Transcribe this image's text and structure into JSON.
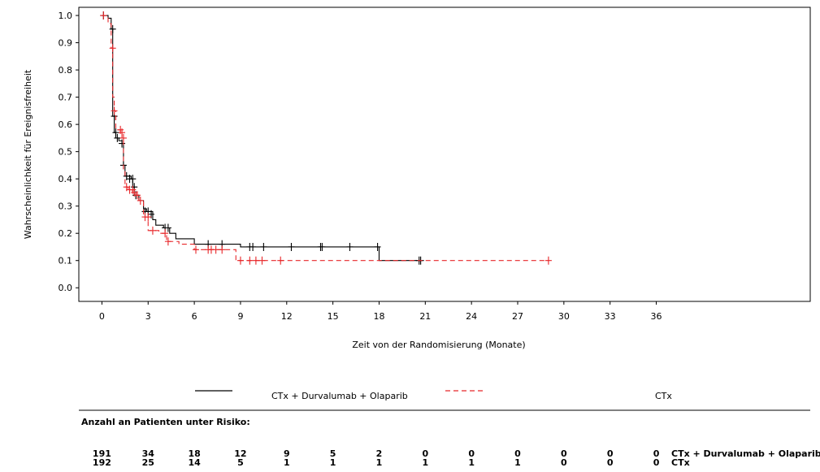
{
  "chart_data": {
    "type": "line",
    "title": "",
    "xlabel": "Zeit von der Randomisierung (Monate)",
    "ylabel": "Wahrscheinlichkeit für Ereignisfreiheit",
    "xlim": [
      -1.5,
      46
    ],
    "ylim": [
      -0.05,
      1.03
    ],
    "x_ticks": [
      0,
      3,
      6,
      9,
      12,
      15,
      18,
      21,
      24,
      27,
      30,
      33,
      36
    ],
    "y_ticks": [
      0.0,
      0.1,
      0.2,
      0.3,
      0.4,
      0.5,
      0.6,
      0.7,
      0.8,
      0.9,
      1.0
    ],
    "grid": false,
    "legend_position": "bottom",
    "series": [
      {
        "name": "CTx + Durvalumab + Olaparib",
        "color": "#000000",
        "line_style": "solid",
        "steps": [
          [
            0,
            1.0
          ],
          [
            0.4,
            0.99
          ],
          [
            0.6,
            0.95
          ],
          [
            0.7,
            0.63
          ],
          [
            0.8,
            0.57
          ],
          [
            0.9,
            0.55
          ],
          [
            1.1,
            0.54
          ],
          [
            1.3,
            0.53
          ],
          [
            1.4,
            0.45
          ],
          [
            1.5,
            0.41
          ],
          [
            1.9,
            0.4
          ],
          [
            2.0,
            0.37
          ],
          [
            2.1,
            0.34
          ],
          [
            2.4,
            0.32
          ],
          [
            2.7,
            0.29
          ],
          [
            2.9,
            0.28
          ],
          [
            3.3,
            0.25
          ],
          [
            3.5,
            0.23
          ],
          [
            4.0,
            0.22
          ],
          [
            4.4,
            0.2
          ],
          [
            4.8,
            0.18
          ],
          [
            6.0,
            0.16
          ],
          [
            9.0,
            0.15
          ],
          [
            18.0,
            0.1
          ],
          [
            20.8,
            0.1
          ]
        ],
        "censored": [
          [
            0.1,
            1.0
          ],
          [
            0.7,
            0.95
          ],
          [
            0.8,
            0.63
          ],
          [
            0.9,
            0.57
          ],
          [
            1.0,
            0.55
          ],
          [
            1.3,
            0.53
          ],
          [
            1.4,
            0.45
          ],
          [
            1.6,
            0.41
          ],
          [
            1.8,
            0.4
          ],
          [
            2.0,
            0.4
          ],
          [
            2.1,
            0.37
          ],
          [
            2.2,
            0.34
          ],
          [
            2.8,
            0.28
          ],
          [
            3.0,
            0.28
          ],
          [
            3.2,
            0.27
          ],
          [
            4.1,
            0.22
          ],
          [
            4.3,
            0.22
          ],
          [
            6.9,
            0.16
          ],
          [
            7.8,
            0.16
          ],
          [
            9.6,
            0.15
          ],
          [
            9.8,
            0.15
          ],
          [
            10.5,
            0.15
          ],
          [
            12.3,
            0.15
          ],
          [
            14.2,
            0.15
          ],
          [
            14.3,
            0.15
          ],
          [
            16.1,
            0.15
          ],
          [
            17.9,
            0.15
          ],
          [
            20.6,
            0.1
          ],
          [
            20.7,
            0.1
          ]
        ],
        "at_risk": [
          191,
          34,
          18,
          12,
          9,
          5,
          2,
          0,
          0,
          0,
          0,
          0,
          0
        ]
      },
      {
        "name": "CTx",
        "color": "#e8272a",
        "line_style": "dashed",
        "steps": [
          [
            0,
            1.0
          ],
          [
            0.4,
            0.97
          ],
          [
            0.6,
            0.88
          ],
          [
            0.7,
            0.7
          ],
          [
            0.8,
            0.65
          ],
          [
            0.9,
            0.58
          ],
          [
            1.2,
            0.57
          ],
          [
            1.3,
            0.55
          ],
          [
            1.4,
            0.43
          ],
          [
            1.5,
            0.37
          ],
          [
            1.7,
            0.36
          ],
          [
            2.0,
            0.35
          ],
          [
            2.2,
            0.34
          ],
          [
            2.4,
            0.32
          ],
          [
            2.7,
            0.26
          ],
          [
            3.0,
            0.21
          ],
          [
            3.7,
            0.2
          ],
          [
            4.2,
            0.17
          ],
          [
            5.0,
            0.16
          ],
          [
            6.0,
            0.14
          ],
          [
            8.7,
            0.1
          ],
          [
            29.0,
            0.1
          ]
        ],
        "censored": [
          [
            0.1,
            1.0
          ],
          [
            0.7,
            0.88
          ],
          [
            0.8,
            0.65
          ],
          [
            1.2,
            0.58
          ],
          [
            1.3,
            0.57
          ],
          [
            1.4,
            0.55
          ],
          [
            1.6,
            0.37
          ],
          [
            1.8,
            0.36
          ],
          [
            2.0,
            0.36
          ],
          [
            2.1,
            0.35
          ],
          [
            2.3,
            0.34
          ],
          [
            2.5,
            0.32
          ],
          [
            2.8,
            0.26
          ],
          [
            3.0,
            0.26
          ],
          [
            3.3,
            0.21
          ],
          [
            4.1,
            0.2
          ],
          [
            4.3,
            0.17
          ],
          [
            6.1,
            0.14
          ],
          [
            6.9,
            0.14
          ],
          [
            7.1,
            0.14
          ],
          [
            7.4,
            0.14
          ],
          [
            7.8,
            0.14
          ],
          [
            9.0,
            0.1
          ],
          [
            9.6,
            0.1
          ],
          [
            10.0,
            0.1
          ],
          [
            10.4,
            0.1
          ],
          [
            11.6,
            0.1
          ],
          [
            29.0,
            0.1
          ]
        ],
        "at_risk": [
          192,
          25,
          14,
          5,
          1,
          1,
          1,
          1,
          1,
          1,
          0,
          0,
          0
        ]
      }
    ],
    "at_risk_title": "Anzahl an Patienten unter Risiko:"
  }
}
